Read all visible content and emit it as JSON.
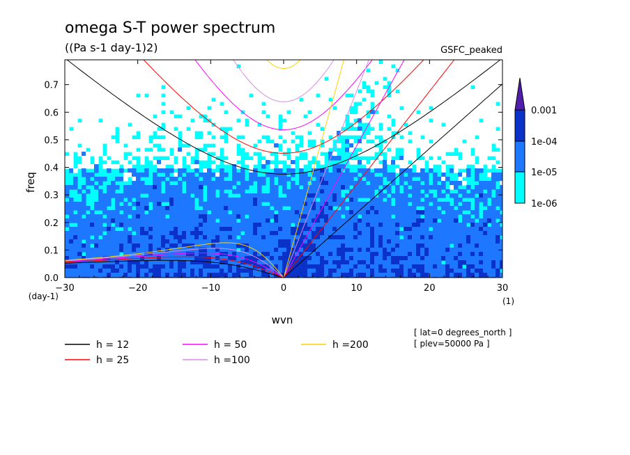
{
  "chart_data": {
    "type": "heatmap",
    "title": "omega S-T power spectrum",
    "subtitle": "((Pa s-1 day-1)2)",
    "model": "GSFC_peaked",
    "xlabel": "wvn",
    "ylabel": "freq",
    "x_unit": "(1)",
    "y_unit": "(day-1)",
    "xlim": [
      -30,
      30
    ],
    "ylim": [
      0,
      0.79
    ],
    "x_ticks": [
      -30,
      -20,
      -10,
      0,
      10,
      20,
      30
    ],
    "y_ticks": [
      0.0,
      0.1,
      0.2,
      0.3,
      0.4,
      0.5,
      0.6,
      0.7
    ],
    "colorbar": {
      "levels": [
        "1e-06",
        "1e-05",
        "1e-04",
        "0.001"
      ],
      "colors": [
        "#00ffff",
        "#1e78ff",
        "#0a32c8",
        "#501eaa"
      ]
    },
    "dispersion_curves": [
      {
        "name": "h = 12",
        "h": 12,
        "color": "#000000"
      },
      {
        "name": "h = 25",
        "h": 25,
        "color": "#ff0000"
      },
      {
        "name": "h = 50",
        "h": 50,
        "color": "#ff00ff"
      },
      {
        "name": "h =100",
        "h": 100,
        "color": "#d88ce6"
      },
      {
        "name": "h =200",
        "h": 200,
        "color": "#ffd200"
      }
    ],
    "annotations": [
      "[ lat=0 degrees_north ]",
      "[ plev=50000 Pa ]"
    ]
  }
}
